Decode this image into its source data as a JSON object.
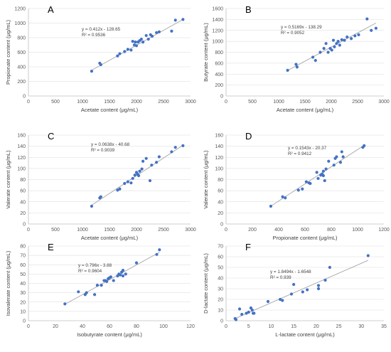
{
  "colors": {
    "point": "#4472C4",
    "trend": "#A5A5A5",
    "grid": "#D9D9D9",
    "axis": "#BFBFBF"
  },
  "chart_data": [
    {
      "type": "scatter",
      "label": "A",
      "xlabel": "Acetate content  (μg/mL)",
      "ylabel": "Propionate content  (μg/mL)",
      "xlim": [
        0,
        3000
      ],
      "ylim": [
        0,
        1200
      ],
      "xticks": [
        0,
        500,
        1000,
        1500,
        2000,
        2500,
        3000
      ],
      "yticks": [
        0,
        200,
        400,
        600,
        800,
        1000,
        1200
      ],
      "equation": "y = 0.412x - 128.65",
      "r2": "R² = 0.9536",
      "trendline": {
        "slope": 0.412,
        "intercept": -128.65
      },
      "x": [
        1170,
        1320,
        1340,
        1650,
        1690,
        1780,
        1840,
        1900,
        1930,
        1960,
        1980,
        2000,
        2030,
        2060,
        2090,
        2120,
        2180,
        2220,
        2260,
        2290,
        2370,
        2420,
        2650,
        2720,
        2860
      ],
      "y": [
        340,
        450,
        430,
        550,
        580,
        610,
        640,
        630,
        750,
        700,
        740,
        690,
        740,
        760,
        780,
        740,
        830,
        780,
        840,
        820,
        870,
        880,
        890,
        1040,
        1050
      ]
    },
    {
      "type": "scatter",
      "label": "B",
      "xlabel": "Acetate content  (μg/mL)",
      "ylabel": "Butyrate content  (μg/mL)",
      "xlim": [
        0,
        3000
      ],
      "ylim": [
        0,
        1600
      ],
      "xticks": [
        0,
        500,
        1000,
        1500,
        2000,
        2500,
        3000
      ],
      "yticks": [
        0,
        200,
        400,
        600,
        800,
        1000,
        1200,
        1400,
        1600
      ],
      "equation": "y = 0.5169x - 138.29",
      "r2": "R² = 0.9052",
      "trendline": {
        "slope": 0.5169,
        "intercept": -138.29
      },
      "x": [
        1170,
        1330,
        1350,
        1650,
        1700,
        1790,
        1860,
        1900,
        1940,
        1980,
        2010,
        2040,
        2060,
        2100,
        2130,
        2160,
        2200,
        2250,
        2300,
        2380,
        2450,
        2520,
        2680,
        2760,
        2850
      ],
      "y": [
        470,
        580,
        530,
        710,
        650,
        800,
        870,
        960,
        800,
        870,
        840,
        1020,
        900,
        960,
        1000,
        930,
        1030,
        1020,
        1080,
        1050,
        1100,
        1120,
        1410,
        1200,
        1240
      ]
    },
    {
      "type": "scatter",
      "label": "C",
      "xlabel": "Acetate content  (μg/mL)",
      "ylabel": "Valerate content  (μg/mL)",
      "xlim": [
        0,
        3000
      ],
      "ylim": [
        0,
        160
      ],
      "xticks": [
        0,
        500,
        1000,
        1500,
        2000,
        2500,
        3000
      ],
      "yticks": [
        0,
        20,
        40,
        60,
        80,
        100,
        120,
        140,
        160
      ],
      "equation": "y = 0.0638x - 40.68",
      "r2": "R² = 0.9039",
      "trendline": {
        "slope": 0.0638,
        "intercept": -40.68
      },
      "x": [
        1170,
        1320,
        1340,
        1650,
        1690,
        1780,
        1840,
        1900,
        1930,
        1970,
        2000,
        2020,
        2040,
        2060,
        2100,
        2120,
        2180,
        2250,
        2280,
        2370,
        2420,
        2650,
        2720,
        2860
      ],
      "y": [
        32,
        47,
        49,
        61,
        63,
        73,
        76,
        74,
        82,
        88,
        93,
        90,
        87,
        95,
        99,
        113,
        118,
        78,
        106,
        111,
        121,
        130,
        138,
        141
      ]
    },
    {
      "type": "scatter",
      "label": "D",
      "xlabel": "Propionate content (μg/mL)",
      "ylabel": "Valerate content  (μg/mL)",
      "xlim": [
        0,
        1200
      ],
      "ylim": [
        0,
        160
      ],
      "xticks": [
        0,
        200,
        400,
        600,
        800,
        1000,
        1200
      ],
      "yticks": [
        0,
        20,
        40,
        60,
        80,
        100,
        120,
        140,
        160
      ],
      "equation": "y = 0.1543x - 20.37",
      "r2": "R² = 0.9412",
      "trendline": {
        "slope": 0.1543,
        "intercept": -20.37
      },
      "x": [
        340,
        430,
        450,
        550,
        580,
        610,
        630,
        640,
        690,
        700,
        720,
        730,
        740,
        740,
        750,
        760,
        780,
        820,
        830,
        840,
        870,
        880,
        890,
        1040,
        1050
      ],
      "y": [
        32,
        49,
        47,
        61,
        63,
        76,
        74,
        73,
        93,
        82,
        88,
        90,
        95,
        87,
        78,
        99,
        113,
        106,
        118,
        121,
        111,
        130,
        121,
        138,
        141
      ]
    },
    {
      "type": "scatter",
      "label": "E",
      "xlabel": "Isobutyrate content (μg/mL)",
      "ylabel": "Isovalerate content (μg/mL)",
      "xlim": [
        0,
        120
      ],
      "ylim": [
        0,
        80
      ],
      "xticks": [
        0,
        20,
        40,
        60,
        80,
        100,
        120
      ],
      "yticks": [
        0,
        10,
        20,
        30,
        40,
        50,
        60,
        70,
        80
      ],
      "equation": "y = 0.796x - 3.88",
      "r2": "R² = 0.9604",
      "trendline": {
        "slope": 0.796,
        "intercept": -3.88
      },
      "x": [
        27,
        37,
        42,
        43,
        49,
        51,
        54,
        56,
        57,
        58,
        59,
        60,
        61,
        63,
        66,
        67,
        68,
        69,
        70,
        70,
        72,
        80,
        95,
        97
      ],
      "y": [
        18,
        31,
        28,
        30,
        28,
        38,
        38,
        43,
        43,
        42,
        45,
        46,
        47,
        43,
        48,
        50,
        49,
        52,
        54,
        48,
        50,
        62,
        71,
        76
      ]
    },
    {
      "type": "scatter",
      "label": "F",
      "xlabel": "L-lactate content (μg/mL)",
      "ylabel": "D-lactate content (μg/mL)",
      "xlim": [
        0,
        35
      ],
      "ylim": [
        0,
        70
      ],
      "xticks": [
        0,
        5,
        10,
        15,
        20,
        25,
        30,
        35
      ],
      "yticks": [
        0,
        10,
        20,
        30,
        40,
        50,
        60,
        70
      ],
      "equation": "y = 1.8494x - 1.6548",
      "r2": "R² = 0.939",
      "trendline": {
        "slope": 1.8494,
        "intercept": -1.6548
      },
      "x": [
        2,
        2.2,
        3,
        3.5,
        4.5,
        5,
        5.5,
        5.8,
        6,
        6.2,
        9.3,
        12,
        12.5,
        14.5,
        15,
        17,
        18,
        20.5,
        20.5,
        22,
        23,
        31.5
      ],
      "y": [
        2,
        1,
        11,
        6,
        7,
        8,
        12,
        10,
        7,
        7,
        18,
        20,
        19,
        25,
        34,
        27,
        29,
        33,
        30,
        38,
        50,
        61
      ]
    }
  ]
}
